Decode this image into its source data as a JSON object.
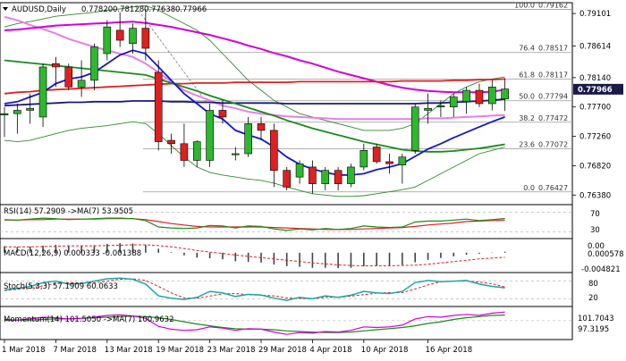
{
  "header": {
    "symbol": "AUDUSD,Daily",
    "ohlc": [
      "0.77820",
      "0.78128",
      "0.77638",
      "0.77966"
    ]
  },
  "colors": {
    "bull_candle": "#2db82d",
    "bear_candle": "#e02020",
    "magenta_ma": "#d400d4",
    "pink_ma": "#e87ee8",
    "red_ma": "#e02020",
    "navy_ma": "#1a1a7a",
    "blue_line": "#1515c8",
    "green_ma": "#1a8a1a",
    "bollinger": "#2e8b2e",
    "last_price_bg": "#1a1a4a"
  },
  "price_axis": {
    "ticks": [
      "0.79101",
      "0.78614",
      "0.78140",
      "0.77700",
      "0.77260",
      "0.76820",
      "0.76380"
    ],
    "last_price": "0.77966"
  },
  "fib_levels": [
    {
      "label": "100.0",
      "value": "0.79162"
    },
    {
      "label": "76.4",
      "value": "0.78517"
    },
    {
      "label": "61.8",
      "value": "0.78117"
    },
    {
      "label": "50.0",
      "value": "0.77794"
    },
    {
      "label": "38.2",
      "value": "0.77472"
    },
    {
      "label": "23.6",
      "value": "0.77072"
    },
    {
      "label": "0.0",
      "value": "0.76427"
    }
  ],
  "panels": {
    "rsi": {
      "title": "RSI(14) 57.2909 ->MA(7) 53.9505",
      "ticks": [
        "70",
        "30"
      ]
    },
    "macd": {
      "title": "MACD(12,26,9) 0.000333 -0.001388",
      "ticks": [
        "0.00",
        "0.000578",
        "-0.004821"
      ]
    },
    "stoch": {
      "title": "Stoch(5,3,3) 57.1909 60.0633",
      "ticks": [
        "80",
        "20"
      ]
    },
    "momentum": {
      "title": "Momentum(14) 101.5050 ->MA(7) 100.9632",
      "ticks": [
        "101.7043",
        "97.3195"
      ]
    }
  },
  "x_axis": {
    "labels": [
      "1 Mar 2018",
      "7 Mar 2018",
      "13 Mar 2018",
      "19 Mar 2018",
      "23 Mar 2018",
      "29 Mar 2018",
      "4 Apr 2018",
      "10 Apr 2018",
      "16 Apr 2018"
    ]
  },
  "chart_data": {
    "type": "candlestick",
    "ylim": [
      0.7625,
      0.7925
    ],
    "candles": [
      {
        "o": 0.7758,
        "h": 0.777,
        "l": 0.7725,
        "c": 0.776
      },
      {
        "o": 0.776,
        "h": 0.7775,
        "l": 0.773,
        "c": 0.7765
      },
      {
        "o": 0.7765,
        "h": 0.779,
        "l": 0.7745,
        "c": 0.7768
      },
      {
        "o": 0.7755,
        "h": 0.7835,
        "l": 0.774,
        "c": 0.783
      },
      {
        "o": 0.7835,
        "h": 0.7845,
        "l": 0.78,
        "c": 0.783
      },
      {
        "o": 0.783,
        "h": 0.7835,
        "l": 0.7795,
        "c": 0.78
      },
      {
        "o": 0.78,
        "h": 0.784,
        "l": 0.7785,
        "c": 0.781
      },
      {
        "o": 0.781,
        "h": 0.7865,
        "l": 0.7795,
        "c": 0.786
      },
      {
        "o": 0.785,
        "h": 0.79,
        "l": 0.784,
        "c": 0.789
      },
      {
        "o": 0.7885,
        "h": 0.7912,
        "l": 0.786,
        "c": 0.787
      },
      {
        "o": 0.7865,
        "h": 0.7895,
        "l": 0.785,
        "c": 0.7888
      },
      {
        "o": 0.7888,
        "h": 0.7916,
        "l": 0.784,
        "c": 0.7858
      },
      {
        "o": 0.7822,
        "h": 0.784,
        "l": 0.7705,
        "c": 0.7718
      },
      {
        "o": 0.772,
        "h": 0.773,
        "l": 0.77,
        "c": 0.7715
      },
      {
        "o": 0.7715,
        "h": 0.7745,
        "l": 0.768,
        "c": 0.769
      },
      {
        "o": 0.769,
        "h": 0.772,
        "l": 0.768,
        "c": 0.7718
      },
      {
        "o": 0.769,
        "h": 0.7775,
        "l": 0.768,
        "c": 0.7765
      },
      {
        "o": 0.7765,
        "h": 0.778,
        "l": 0.7745,
        "c": 0.7755
      },
      {
        "o": 0.77,
        "h": 0.771,
        "l": 0.769,
        "c": 0.77
      },
      {
        "o": 0.77,
        "h": 0.7755,
        "l": 0.7695,
        "c": 0.7745
      },
      {
        "o": 0.7745,
        "h": 0.7755,
        "l": 0.772,
        "c": 0.7735
      },
      {
        "o": 0.7735,
        "h": 0.7745,
        "l": 0.765,
        "c": 0.7675
      },
      {
        "o": 0.7675,
        "h": 0.768,
        "l": 0.7645,
        "c": 0.765
      },
      {
        "o": 0.7665,
        "h": 0.769,
        "l": 0.7655,
        "c": 0.7685
      },
      {
        "o": 0.768,
        "h": 0.769,
        "l": 0.764,
        "c": 0.7655
      },
      {
        "o": 0.7655,
        "h": 0.768,
        "l": 0.7645,
        "c": 0.7675
      },
      {
        "o": 0.7675,
        "h": 0.768,
        "l": 0.7645,
        "c": 0.7655
      },
      {
        "o": 0.7655,
        "h": 0.7685,
        "l": 0.765,
        "c": 0.768
      },
      {
        "o": 0.768,
        "h": 0.7715,
        "l": 0.7675,
        "c": 0.7705
      },
      {
        "o": 0.771,
        "h": 0.7715,
        "l": 0.7685,
        "c": 0.7688
      },
      {
        "o": 0.7688,
        "h": 0.77,
        "l": 0.767,
        "c": 0.7685
      },
      {
        "o": 0.7683,
        "h": 0.77,
        "l": 0.7655,
        "c": 0.7695
      },
      {
        "o": 0.7705,
        "h": 0.7775,
        "l": 0.77,
        "c": 0.777
      },
      {
        "o": 0.7765,
        "h": 0.779,
        "l": 0.7745,
        "c": 0.7768
      },
      {
        "o": 0.777,
        "h": 0.778,
        "l": 0.7755,
        "c": 0.7772
      },
      {
        "o": 0.777,
        "h": 0.779,
        "l": 0.7755,
        "c": 0.7785
      },
      {
        "o": 0.7778,
        "h": 0.78,
        "l": 0.776,
        "c": 0.7795
      },
      {
        "o": 0.7795,
        "h": 0.7805,
        "l": 0.777,
        "c": 0.7775
      },
      {
        "o": 0.7775,
        "h": 0.781,
        "l": 0.7765,
        "c": 0.78
      },
      {
        "o": 0.7782,
        "h": 0.7813,
        "l": 0.7764,
        "c": 0.7797
      }
    ],
    "overlays": {
      "magenta": [
        0.7885,
        0.7886,
        0.7888,
        0.789,
        0.7892,
        0.7893,
        0.7894,
        0.7895,
        0.7896,
        0.7897,
        0.7898,
        0.7896,
        0.7893,
        0.789,
        0.7886,
        0.7882,
        0.7878,
        0.7873,
        0.7868,
        0.7862,
        0.7857,
        0.7851,
        0.7846,
        0.784,
        0.7835,
        0.7829,
        0.7823,
        0.7818,
        0.7813,
        0.7808,
        0.7803,
        0.7799,
        0.7796,
        0.7794,
        0.7793,
        0.7792,
        0.7792,
        0.7792,
        0.7793,
        0.7796
      ],
      "pink": [
        0.7905,
        0.79,
        0.7893,
        0.7887,
        0.788,
        0.7872,
        0.7866,
        0.786,
        0.7855,
        0.785,
        0.7845,
        0.7835,
        0.7822,
        0.7808,
        0.7795,
        0.7787,
        0.778,
        0.7772,
        0.7768,
        0.7763,
        0.776,
        0.7758,
        0.7756,
        0.7755,
        0.7754,
        0.7753,
        0.7752,
        0.7752,
        0.7752,
        0.7752,
        0.7752,
        0.7752,
        0.7752,
        0.7753,
        0.7753,
        0.7754,
        0.7755,
        0.7756,
        0.7757,
        0.7758
      ],
      "red": [
        0.779,
        0.7792,
        0.7793,
        0.7795,
        0.7796,
        0.7797,
        0.7798,
        0.7799,
        0.78,
        0.7801,
        0.7802,
        0.7803,
        0.7804,
        0.7805,
        0.7805,
        0.7806,
        0.7806,
        0.7806,
        0.7807,
        0.7807,
        0.7807,
        0.7807,
        0.7807,
        0.7808,
        0.7808,
        0.7808,
        0.7808,
        0.7808,
        0.7808,
        0.7808,
        0.7808,
        0.7809,
        0.7809,
        0.7809,
        0.7809,
        0.781,
        0.781,
        0.7811,
        0.7811,
        0.7812
      ],
      "navy": [
        0.7772,
        0.7773,
        0.7774,
        0.7775,
        0.7776,
        0.7777,
        0.7777,
        0.7778,
        0.7778,
        0.7778,
        0.7779,
        0.7779,
        0.7779,
        0.7778,
        0.7778,
        0.7777,
        0.7777,
        0.7776,
        0.7776,
        0.7776,
        0.7776,
        0.7776,
        0.7775,
        0.7775,
        0.7775,
        0.7775,
        0.7775,
        0.7775,
        0.7775,
        0.7775,
        0.7775,
        0.7775,
        0.7775,
        0.7776,
        0.7776,
        0.7777,
        0.7778,
        0.7779,
        0.778,
        0.7782
      ],
      "blue": [
        0.7775,
        0.7778,
        0.7785,
        0.7792,
        0.7805,
        0.7812,
        0.7815,
        0.7822,
        0.7835,
        0.7848,
        0.7855,
        0.785,
        0.783,
        0.781,
        0.779,
        0.7775,
        0.776,
        0.7752,
        0.7735,
        0.7728,
        0.7722,
        0.771,
        0.7695,
        0.7684,
        0.7677,
        0.7672,
        0.7668,
        0.7668,
        0.767,
        0.7676,
        0.768,
        0.7685,
        0.7696,
        0.7707,
        0.7715,
        0.7724,
        0.7732,
        0.774,
        0.7748,
        0.7755
      ],
      "green": [
        0.784,
        0.7838,
        0.7836,
        0.7834,
        0.7832,
        0.783,
        0.7828,
        0.7826,
        0.7824,
        0.7822,
        0.782,
        0.7818,
        0.7812,
        0.7806,
        0.78,
        0.7794,
        0.7787,
        0.7781,
        0.7775,
        0.7769,
        0.7763,
        0.7757,
        0.775,
        0.7744,
        0.7738,
        0.7733,
        0.7728,
        0.7723,
        0.7718,
        0.7714,
        0.771,
        0.7706,
        0.7704,
        0.7703,
        0.7703,
        0.7704,
        0.7706,
        0.7708,
        0.7711,
        0.7714
      ],
      "bb_upper": [
        0.789,
        0.7895,
        0.7898,
        0.7902,
        0.7906,
        0.7908,
        0.791,
        0.7912,
        0.7915,
        0.7917,
        0.792,
        0.7922,
        0.7915,
        0.7905,
        0.7895,
        0.7885,
        0.787,
        0.785,
        0.783,
        0.781,
        0.7795,
        0.778,
        0.777,
        0.776,
        0.7755,
        0.775,
        0.7745,
        0.774,
        0.7735,
        0.7735,
        0.7735,
        0.7738,
        0.7745,
        0.776,
        0.7775,
        0.779,
        0.78,
        0.7808,
        0.7812,
        0.7815
      ],
      "bb_lower": [
        0.772,
        0.7718,
        0.772,
        0.7725,
        0.773,
        0.7735,
        0.7738,
        0.774,
        0.7742,
        0.7745,
        0.7748,
        0.7745,
        0.773,
        0.7712,
        0.7695,
        0.768,
        0.7672,
        0.7668,
        0.7665,
        0.7662,
        0.766,
        0.7656,
        0.765,
        0.7645,
        0.764,
        0.7638,
        0.7636,
        0.7636,
        0.7637,
        0.764,
        0.7643,
        0.7646,
        0.765,
        0.766,
        0.767,
        0.768,
        0.769,
        0.77,
        0.7705,
        0.771
      ]
    },
    "indicators": {
      "rsi": [
        55,
        54,
        56,
        58,
        57,
        55,
        56,
        57,
        58,
        58,
        57,
        53,
        40,
        38,
        37,
        38,
        43,
        42,
        38,
        42,
        41,
        36,
        33,
        36,
        34,
        37,
        35,
        37,
        42,
        40,
        39,
        40,
        50,
        52,
        52,
        54,
        56,
        53,
        55,
        57.29
      ],
      "rsi_ma": [
        54,
        54,
        55,
        55,
        56,
        56,
        56,
        56,
        57,
        57,
        57,
        55,
        51,
        47,
        44,
        41,
        40,
        40,
        40,
        40,
        40,
        39,
        38,
        37,
        36,
        35,
        35,
        35,
        36,
        37,
        38,
        39,
        41,
        44,
        46,
        48,
        51,
        52,
        53,
        53.95
      ],
      "macd": [
        0.002,
        0.0018,
        0.0019,
        0.0022,
        0.0024,
        0.0022,
        0.0021,
        0.0023,
        0.0027,
        0.0029,
        0.0028,
        0.0024,
        0.0012,
        0.0002,
        -0.0008,
        -0.0015,
        -0.0017,
        -0.002,
        -0.0026,
        -0.0028,
        -0.003,
        -0.0036,
        -0.0041,
        -0.0043,
        -0.0046,
        -0.0046,
        -0.0047,
        -0.0046,
        -0.0042,
        -0.004,
        -0.0039,
        -0.0037,
        -0.0029,
        -0.0022,
        -0.0016,
        -0.0011,
        -0.0006,
        -0.0003,
        0.0001,
        0.00033
      ],
      "macd_signal": [
        0.0018,
        0.0018,
        0.0018,
        0.0019,
        0.002,
        0.0021,
        0.0021,
        0.0021,
        0.0022,
        0.0023,
        0.0024,
        0.0024,
        0.0022,
        0.0018,
        0.0013,
        0.0007,
        0.0002,
        -0.0002,
        -0.0007,
        -0.0011,
        -0.0015,
        -0.0019,
        -0.0023,
        -0.0027,
        -0.0031,
        -0.0034,
        -0.0037,
        -0.0039,
        -0.004,
        -0.004,
        -0.004,
        -0.0039,
        -0.0038,
        -0.0035,
        -0.0031,
        -0.0027,
        -0.0023,
        -0.0019,
        -0.0016,
        -0.001388
      ],
      "stoch_k": [
        50,
        55,
        62,
        75,
        80,
        70,
        72,
        80,
        88,
        90,
        86,
        70,
        30,
        22,
        18,
        25,
        45,
        40,
        28,
        35,
        33,
        22,
        15,
        25,
        20,
        30,
        25,
        32,
        45,
        40,
        38,
        45,
        75,
        82,
        78,
        80,
        82,
        70,
        62,
        57.19
      ],
      "stoch_d": [
        48,
        52,
        56,
        64,
        72,
        75,
        74,
        74,
        80,
        86,
        88,
        82,
        62,
        40,
        23,
        22,
        29,
        37,
        38,
        34,
        32,
        30,
        23,
        21,
        20,
        25,
        25,
        29,
        34,
        39,
        41,
        41,
        53,
        67,
        78,
        80,
        80,
        77,
        71,
        60.06
      ],
      "momentum": [
        100.2,
        100.1,
        100.3,
        100.6,
        100.5,
        100.3,
        100.4,
        100.6,
        100.9,
        101.0,
        100.8,
        100.4,
        99.0,
        98.5,
        98.3,
        98.4,
        98.9,
        98.7,
        98.3,
        98.6,
        98.5,
        98.0,
        97.6,
        97.9,
        97.8,
        98.1,
        98.0,
        98.3,
        98.9,
        98.8,
        98.9,
        99.2,
        100.3,
        100.7,
        100.6,
        100.9,
        101.1,
        100.9,
        101.3,
        101.505
      ],
      "momentum_ma": [
        100.0,
        100.1,
        100.1,
        100.2,
        100.3,
        100.3,
        100.4,
        100.5,
        100.6,
        100.7,
        100.8,
        100.7,
        100.5,
        100.2,
        99.8,
        99.4,
        99.1,
        98.8,
        98.6,
        98.5,
        98.5,
        98.4,
        98.2,
        98.1,
        98.0,
        97.9,
        97.9,
        98.0,
        98.2,
        98.4,
        98.6,
        98.8,
        99.1,
        99.5,
        99.8,
        100.2,
        100.5,
        100.7,
        100.9,
        100.9632
      ]
    }
  }
}
